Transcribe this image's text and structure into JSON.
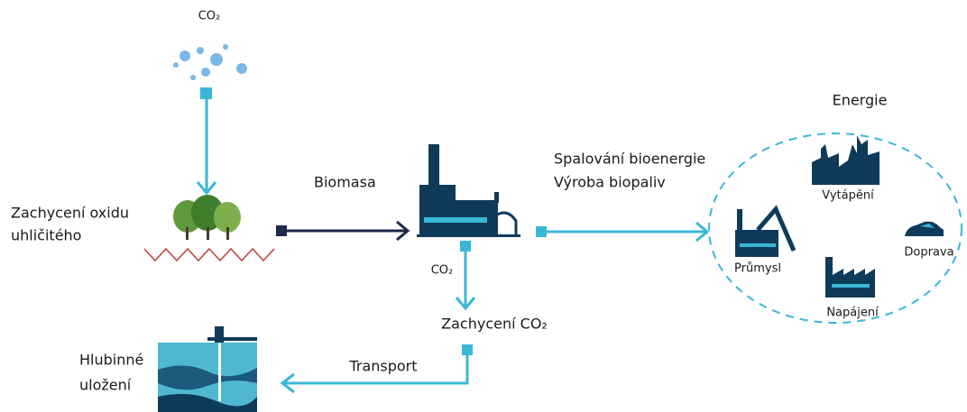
{
  "co2_source": {
    "label": "CO₂"
  },
  "capture": {
    "lines": [
      "Zachycení oxidu",
      "uhličitého"
    ]
  },
  "biomass": {
    "label": "Biomasa"
  },
  "plant": {
    "lines": [
      "Spalování bioenergie",
      "Výroba biopaliv"
    ]
  },
  "energy": {
    "title": "Energie",
    "uses": [
      "Vytápění",
      "Doprava",
      "Průmysl",
      "Napájení"
    ]
  },
  "plant_co2": {
    "label": "CO₂"
  },
  "co2_capture": {
    "label": "Zachycení CO₂"
  },
  "transport": {
    "label": "Transport"
  },
  "storage": {
    "lines": [
      "Hlubinné",
      "uložení"
    ]
  }
}
